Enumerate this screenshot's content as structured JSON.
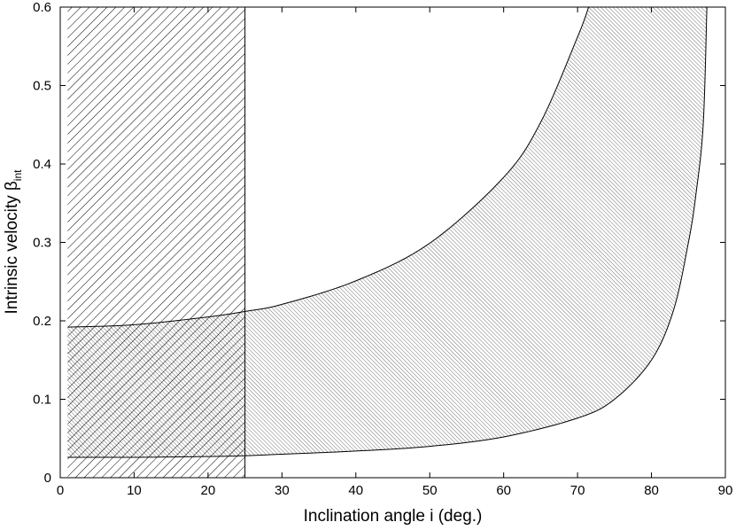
{
  "chart_data": {
    "type": "area",
    "title": "",
    "xlabel": "Inclination angle i (deg.)",
    "ylabel": "Intrinsic velocity β",
    "ylabel_subscript": "int",
    "xlim": [
      0,
      90
    ],
    "ylim": [
      0,
      0.6
    ],
    "x_ticks": [
      "0",
      "10",
      "20",
      "30",
      "40",
      "50",
      "60",
      "70",
      "80",
      "90"
    ],
    "y_ticks": [
      "0",
      "0.1",
      "0.2",
      "0.3",
      "0.4",
      "0.5",
      "0.6"
    ],
    "grid": false,
    "legend": "none",
    "regions": [
      {
        "kind": "vertical_band",
        "x_range": [
          1,
          25
        ],
        "y_range": [
          0,
          0.6
        ],
        "pattern": "dense diagonal hatch /",
        "boundary": "solid vertical line at x = 25"
      },
      {
        "kind": "curve_band",
        "x_range": [
          1,
          87.5
        ],
        "pattern": "fine diagonal hatch \\",
        "upper_boundary": {
          "x": [
            1,
            10,
            20,
            25,
            30,
            40,
            50,
            60,
            65,
            70,
            71.5
          ],
          "y": [
            0.192,
            0.195,
            0.205,
            0.212,
            0.221,
            0.251,
            0.299,
            0.383,
            0.453,
            0.562,
            0.6
          ]
        },
        "lower_boundary": {
          "x": [
            1,
            10,
            20,
            25,
            30,
            40,
            50,
            60,
            70,
            75,
            80,
            83,
            85,
            86,
            87,
            87.5
          ],
          "y": [
            0.026,
            0.026,
            0.027,
            0.028,
            0.03,
            0.034,
            0.04,
            0.052,
            0.076,
            0.1,
            0.15,
            0.214,
            0.3,
            0.36,
            0.45,
            0.6
          ]
        }
      }
    ]
  }
}
